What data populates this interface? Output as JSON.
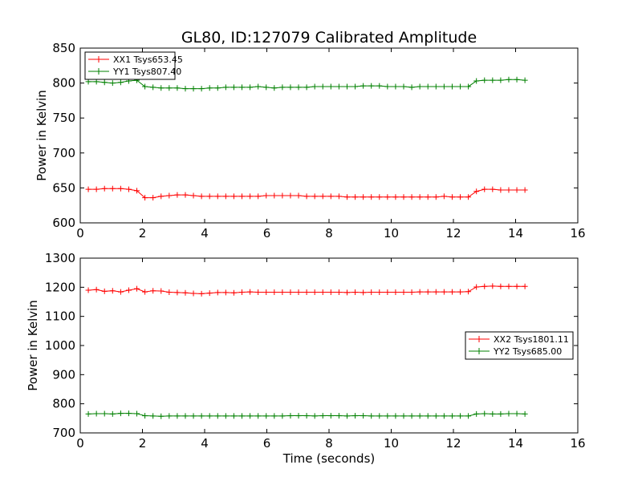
{
  "chart_data": [
    {
      "type": "line",
      "title": "GL80, ID:127079 Calibrated Amplitude",
      "xlabel": "",
      "ylabel": "Power in Kelvin",
      "xlim": [
        0,
        16
      ],
      "ylim": [
        600,
        850
      ],
      "xticks": [
        "0",
        "2",
        "4",
        "6",
        "8",
        "10",
        "12",
        "14",
        "16"
      ],
      "yticks": [
        "600",
        "650",
        "700",
        "750",
        "800",
        "850"
      ],
      "legend_position": "top-left",
      "x": [
        0.26,
        0.52,
        0.78,
        1.04,
        1.3,
        1.56,
        1.82,
        2.08,
        2.34,
        2.6,
        2.86,
        3.12,
        3.38,
        3.64,
        3.9,
        4.16,
        4.42,
        4.68,
        4.94,
        5.2,
        5.46,
        5.72,
        5.98,
        6.24,
        6.5,
        6.76,
        7.02,
        7.28,
        7.54,
        7.8,
        8.06,
        8.32,
        8.58,
        8.84,
        9.1,
        9.36,
        9.62,
        9.88,
        10.14,
        10.4,
        10.66,
        10.92,
        11.18,
        11.44,
        11.7,
        11.96,
        12.22,
        12.48,
        12.74,
        13.0,
        13.26,
        13.52,
        13.78,
        14.04,
        14.3
      ],
      "series": [
        {
          "name": "XX1 Tsys653.45",
          "color": "#ff0000",
          "values": [
            648,
            648,
            649,
            649,
            649,
            648,
            646,
            636,
            636,
            638,
            639,
            640,
            640,
            639,
            638,
            638,
            638,
            638,
            638,
            638,
            638,
            638,
            639,
            639,
            639,
            639,
            639,
            638,
            638,
            638,
            638,
            638,
            637,
            637,
            637,
            637,
            637,
            637,
            637,
            637,
            637,
            637,
            637,
            637,
            638,
            637,
            637,
            637,
            645,
            648,
            648,
            647,
            647,
            647,
            647
          ]
        },
        {
          "name": "YY1 Tsys807.40",
          "color": "#008000",
          "values": [
            802,
            802,
            801,
            800,
            801,
            803,
            804,
            795,
            794,
            793,
            793,
            793,
            792,
            792,
            792,
            793,
            793,
            794,
            794,
            794,
            794,
            795,
            794,
            793,
            794,
            794,
            794,
            794,
            795,
            795,
            795,
            795,
            795,
            795,
            796,
            796,
            796,
            795,
            795,
            795,
            794,
            795,
            795,
            795,
            795,
            795,
            795,
            795,
            803,
            804,
            804,
            804,
            805,
            805,
            804
          ]
        }
      ]
    },
    {
      "type": "line",
      "title": "",
      "xlabel": "Time (seconds)",
      "ylabel": "Power in Kelvin",
      "xlim": [
        0,
        16
      ],
      "ylim": [
        700,
        1300
      ],
      "xticks": [
        "0",
        "2",
        "4",
        "6",
        "8",
        "10",
        "12",
        "14",
        "16"
      ],
      "yticks": [
        "700",
        "800",
        "900",
        "1000",
        "1100",
        "1200",
        "1300"
      ],
      "legend_position": "center-right",
      "x": [
        0.26,
        0.52,
        0.78,
        1.04,
        1.3,
        1.56,
        1.82,
        2.08,
        2.34,
        2.6,
        2.86,
        3.12,
        3.38,
        3.64,
        3.9,
        4.16,
        4.42,
        4.68,
        4.94,
        5.2,
        5.46,
        5.72,
        5.98,
        6.24,
        6.5,
        6.76,
        7.02,
        7.28,
        7.54,
        7.8,
        8.06,
        8.32,
        8.58,
        8.84,
        9.1,
        9.36,
        9.62,
        9.88,
        10.14,
        10.4,
        10.66,
        10.92,
        11.18,
        11.44,
        11.7,
        11.96,
        12.22,
        12.48,
        12.74,
        13.0,
        13.26,
        13.52,
        13.78,
        14.04,
        14.3
      ],
      "series": [
        {
          "name": "XX2 Tsys1801.11",
          "color": "#ff0000",
          "values": [
            1190,
            1192,
            1186,
            1188,
            1184,
            1190,
            1195,
            1184,
            1188,
            1187,
            1183,
            1182,
            1181,
            1179,
            1178,
            1180,
            1182,
            1182,
            1181,
            1183,
            1184,
            1183,
            1183,
            1183,
            1183,
            1183,
            1183,
            1183,
            1183,
            1183,
            1183,
            1183,
            1182,
            1183,
            1182,
            1183,
            1183,
            1183,
            1183,
            1183,
            1183,
            1184,
            1184,
            1184,
            1184,
            1184,
            1184,
            1185,
            1201,
            1203,
            1204,
            1203,
            1203,
            1203,
            1203
          ]
        },
        {
          "name": "YY2 Tsys685.00",
          "color": "#008000",
          "values": [
            765,
            766,
            766,
            765,
            767,
            767,
            766,
            759,
            758,
            757,
            758,
            758,
            758,
            758,
            758,
            758,
            758,
            758,
            758,
            758,
            758,
            758,
            758,
            758,
            758,
            759,
            759,
            759,
            758,
            759,
            759,
            759,
            758,
            759,
            759,
            758,
            758,
            758,
            758,
            758,
            758,
            758,
            758,
            758,
            758,
            758,
            758,
            758,
            765,
            766,
            765,
            765,
            766,
            766,
            765
          ]
        }
      ]
    }
  ]
}
